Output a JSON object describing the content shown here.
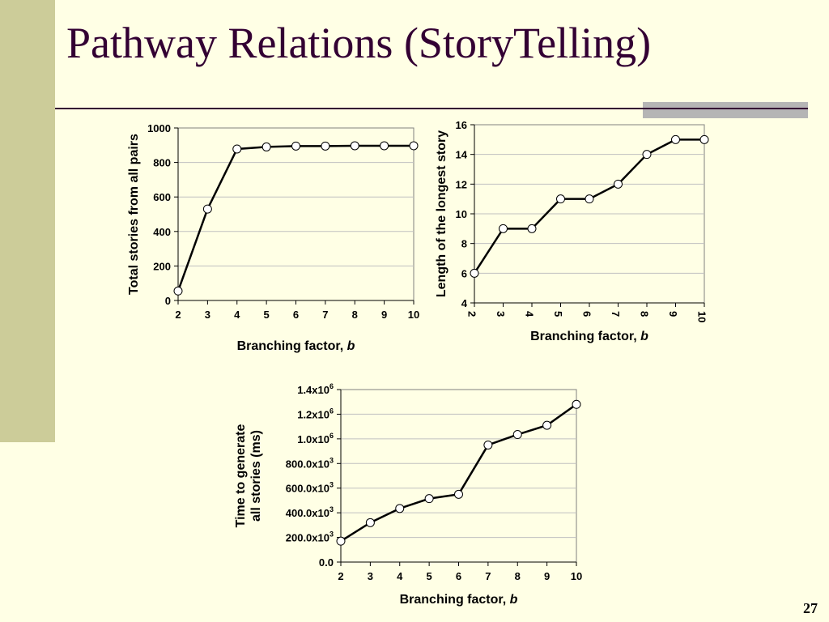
{
  "slide": {
    "title": "Pathway Relations (StoryTelling)",
    "page_number": "27"
  },
  "colors": {
    "background": "#FFFFE5",
    "left_bar": "#CCCC99",
    "title": "#330033",
    "rule_box": "#B5B5B5",
    "line": "#000000",
    "marker_fill": "#FFFFFF",
    "grid": "#C0C0C0"
  },
  "chart_data": [
    {
      "type": "line",
      "x": [
        2,
        3,
        4,
        5,
        6,
        7,
        8,
        9,
        10
      ],
      "series": [
        {
          "values": [
            55,
            530,
            878,
            890,
            895,
            895,
            897,
            897,
            897
          ]
        }
      ],
      "ylim": [
        0,
        1000
      ],
      "yticks": [
        0,
        200,
        400,
        600,
        800,
        1000
      ],
      "ytick_labels": [
        "0",
        "200",
        "400",
        "600",
        "800",
        "1000"
      ],
      "xtick_labels": [
        "2",
        "3",
        "4",
        "5",
        "6",
        "7",
        "8",
        "9",
        "10"
      ],
      "xlabel": "Branching factor, ",
      "xlabel_italic": "b",
      "ylabel": "Total stories from all pairs",
      "grid": "horizontal",
      "legend": "none"
    },
    {
      "type": "line",
      "x": [
        2,
        3,
        4,
        5,
        6,
        7,
        8,
        9,
        10
      ],
      "series": [
        {
          "values": [
            6,
            9,
            9,
            11,
            11,
            12,
            14,
            15,
            15
          ]
        }
      ],
      "ylim": [
        4,
        16
      ],
      "yticks": [
        4,
        6,
        8,
        10,
        12,
        14,
        16
      ],
      "ytick_labels": [
        "4",
        "6",
        "8",
        "10",
        "12",
        "14",
        "16"
      ],
      "xtick_labels": [
        "2",
        "3",
        "4",
        "5",
        "6",
        "7",
        "8",
        "9",
        "10"
      ],
      "xtick_rotation": "vertical",
      "xlabel": "Branching factor, ",
      "xlabel_italic": "b",
      "ylabel": "Length of the longest  story",
      "grid": "horizontal",
      "legend": "none"
    },
    {
      "type": "line",
      "x": [
        2,
        3,
        4,
        5,
        6,
        7,
        8,
        9,
        10
      ],
      "series": [
        {
          "values": [
            170000,
            320000,
            435000,
            515000,
            550000,
            950000,
            1035000,
            1110000,
            1280000
          ]
        }
      ],
      "ylim": [
        0,
        1400000
      ],
      "yticks": [
        0,
        200000,
        400000,
        600000,
        800000,
        1000000,
        1200000,
        1400000
      ],
      "ytick_labels": [
        {
          "base": "0.0",
          "exp": ""
        },
        {
          "base": "200.0x10",
          "exp": "3"
        },
        {
          "base": "400.0x10",
          "exp": "3"
        },
        {
          "base": "600.0x10",
          "exp": "3"
        },
        {
          "base": "800.0x10",
          "exp": "3"
        },
        {
          "base": "1.0x10",
          "exp": "6"
        },
        {
          "base": "1.2x10",
          "exp": "6"
        },
        {
          "base": "1.4x10",
          "exp": "6"
        }
      ],
      "xtick_labels": [
        "2",
        "3",
        "4",
        "5",
        "6",
        "7",
        "8",
        "9",
        "10"
      ],
      "xlabel": "Branching factor, ",
      "xlabel_italic": "b",
      "ylabel_lines": [
        "Time to generate",
        "all stories (ms)"
      ],
      "grid": "horizontal",
      "legend": "none"
    }
  ]
}
